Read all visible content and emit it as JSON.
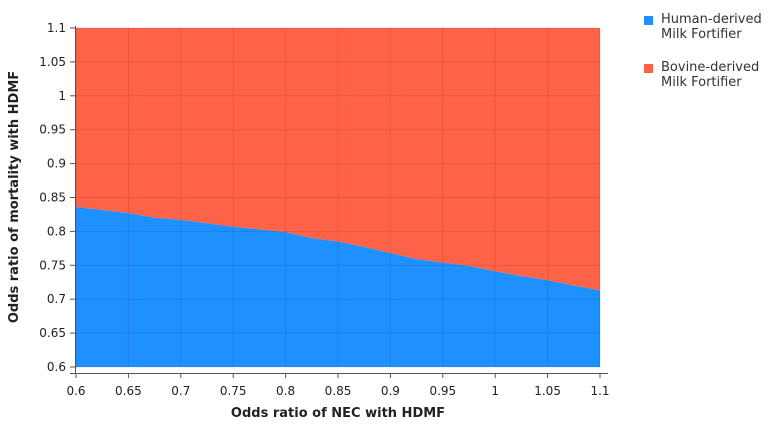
{
  "chart_data": {
    "type": "area",
    "xlabel": "Odds ratio of NEC with HDMF",
    "ylabel": "Odds ratio of mortality with HDMF",
    "xlim": [
      0.6,
      1.1
    ],
    "ylim": [
      0.6,
      1.1
    ],
    "x_ticks": [
      "0.6",
      "0.65",
      "0.7",
      "0.75",
      "0.8",
      "0.85",
      "0.9",
      "0.95",
      "1",
      "1.05",
      "1.1"
    ],
    "y_ticks": [
      "0.6",
      "0.65",
      "0.7",
      "0.75",
      "0.8",
      "0.85",
      "0.9",
      "0.95",
      "1",
      "1.05",
      "1.1"
    ],
    "grid": true,
    "legend_position": "top-right",
    "boundary": {
      "x": [
        0.6,
        0.65,
        0.675,
        0.7,
        0.75,
        0.8,
        0.825,
        0.85,
        0.875,
        0.9,
        0.925,
        0.95,
        0.975,
        1.0,
        1.025,
        1.05,
        1.075,
        1.1
      ],
      "y": [
        0.836,
        0.827,
        0.82,
        0.817,
        0.807,
        0.799,
        0.79,
        0.785,
        0.777,
        0.768,
        0.759,
        0.754,
        0.749,
        0.741,
        0.734,
        0.728,
        0.72,
        0.713
      ]
    },
    "series": [
      {
        "name": "Human-derived Milk Fortifier",
        "color": "#1e90ff",
        "region": "below-boundary"
      },
      {
        "name": "Bovine-derived Milk Fortifier",
        "color": "#ff6347",
        "region": "above-boundary"
      }
    ]
  }
}
